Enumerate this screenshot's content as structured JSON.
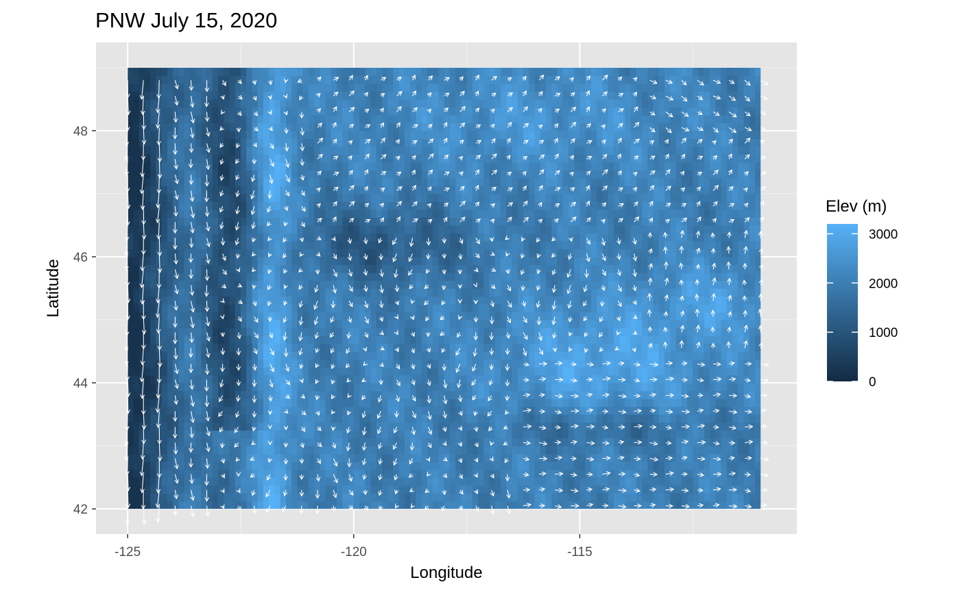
{
  "chart_data": {
    "type": "heatmap",
    "subtype": "wind-vector-field-over-elevation-raster",
    "title": "PNW July 15, 2020",
    "xlabel": "Longitude",
    "ylabel": "Latitude",
    "xlim": [
      -125.7,
      -110.2
    ],
    "ylim": [
      41.6,
      49.4
    ],
    "raster_extent": {
      "lon": [
        -125,
        -111
      ],
      "lat": [
        42,
        49
      ]
    },
    "x_ticks": [
      {
        "value": -125,
        "label": "-125"
      },
      {
        "value": -120,
        "label": "-120"
      },
      {
        "value": -115,
        "label": "-115"
      }
    ],
    "y_ticks": [
      {
        "value": 42,
        "label": "42"
      },
      {
        "value": 44,
        "label": "44"
      },
      {
        "value": 46,
        "label": "46"
      },
      {
        "value": 48,
        "label": "48"
      }
    ],
    "x_minor": [
      -122.5,
      -117.5,
      -112.5
    ],
    "y_minor": [
      43,
      45,
      47,
      49
    ],
    "grid": true,
    "panel_background": "#e5e5e5",
    "arrow_color": "#ffffff",
    "legend": {
      "title": "Elev (m)",
      "position": "right",
      "range": [
        0,
        3200
      ],
      "ticks": [
        {
          "value": 0,
          "label": "0"
        },
        {
          "value": 1000,
          "label": "1000"
        },
        {
          "value": 2000,
          "label": "2000"
        },
        {
          "value": 3000,
          "label": "3000"
        }
      ],
      "color_low": "#132b43",
      "color_high": "#56b1f7"
    }
  }
}
